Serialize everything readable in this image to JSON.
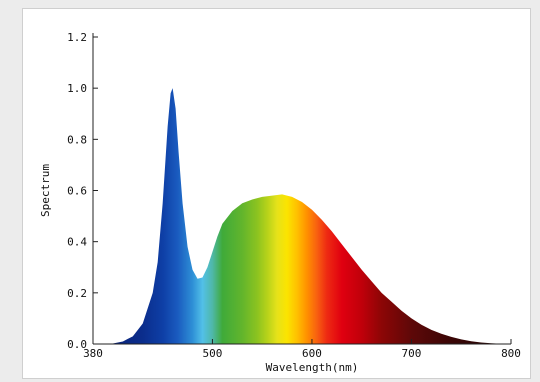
{
  "chart_data": {
    "type": "area",
    "title": "",
    "xlabel": "Wavelength(nm)",
    "ylabel": "Spectrum",
    "xlim": [
      380,
      800
    ],
    "ylim": [
      0,
      1.2
    ],
    "x_ticks": [
      380,
      500,
      600,
      700,
      800
    ],
    "x_tick_labels": [
      "380",
      "500",
      "600",
      "700",
      "800"
    ],
    "y_ticks": [
      0.0,
      0.2,
      0.4,
      0.6,
      0.8,
      1.0,
      1.2
    ],
    "y_tick_labels": [
      "0.0",
      "0.2",
      "0.4",
      "0.6",
      "0.8",
      "1.0",
      "1.2"
    ],
    "grid": false,
    "fill": "visible-spectrum gradient by wavelength",
    "series": [
      {
        "x": [
          380,
          400,
          410,
          420,
          430,
          440,
          445,
          450,
          455,
          458,
          460,
          463,
          466,
          470,
          475,
          480,
          485,
          490,
          495,
          500,
          505,
          510,
          520,
          530,
          540,
          550,
          560,
          570,
          580,
          590,
          600,
          610,
          620,
          630,
          640,
          650,
          660,
          670,
          680,
          690,
          700,
          710,
          720,
          730,
          740,
          750,
          760,
          770,
          780,
          790,
          800
        ],
        "y": [
          0.0,
          0.002,
          0.01,
          0.03,
          0.08,
          0.2,
          0.32,
          0.55,
          0.85,
          0.98,
          1.0,
          0.92,
          0.75,
          0.55,
          0.38,
          0.29,
          0.255,
          0.26,
          0.3,
          0.36,
          0.42,
          0.47,
          0.52,
          0.55,
          0.565,
          0.575,
          0.58,
          0.585,
          0.575,
          0.555,
          0.525,
          0.485,
          0.44,
          0.39,
          0.34,
          0.29,
          0.245,
          0.2,
          0.165,
          0.13,
          0.1,
          0.075,
          0.055,
          0.04,
          0.028,
          0.018,
          0.011,
          0.006,
          0.003,
          0.001,
          0.0
        ]
      }
    ]
  },
  "colors": {
    "axis": "#222222",
    "frame_border": "#cfcfcf",
    "page_background": "#ececec",
    "plot_background": "#ffffff"
  }
}
